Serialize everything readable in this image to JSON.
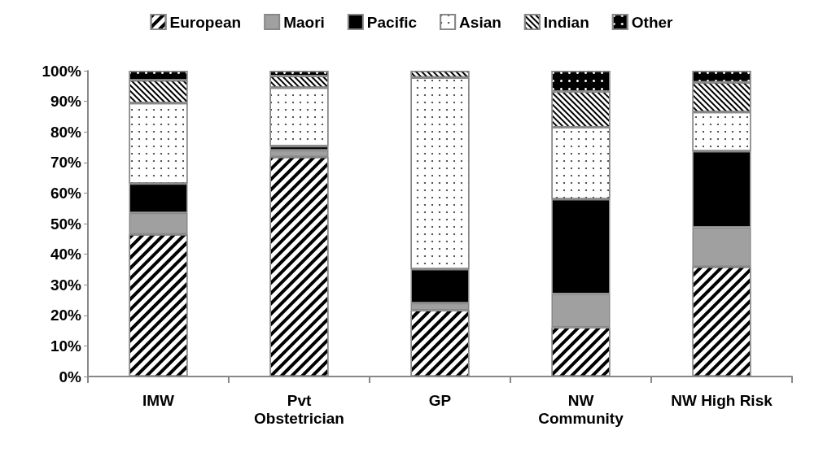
{
  "chart_data": {
    "type": "bar",
    "stacked": true,
    "categories": [
      "IMW",
      "Pvt\nObstetrician",
      "GP",
      "NW\nCommunity",
      "NW High Risk"
    ],
    "series": [
      {
        "name": "European",
        "color": "#ffffff",
        "values": [
          46.5,
          71.8,
          21.7,
          16.1,
          35.9
        ]
      },
      {
        "name": "Maori",
        "color": "#a0a0a0",
        "values": [
          7.0,
          2.2,
          2.3,
          10.9,
          12.9
        ]
      },
      {
        "name": "Pacific",
        "color": "#000000",
        "values": [
          9.6,
          1.3,
          11.1,
          31.0,
          24.9
        ]
      },
      {
        "name": "Asian",
        "color": "#ffffff",
        "values": [
          26.3,
          19.2,
          62.7,
          23.5,
          12.8
        ]
      },
      {
        "name": "Indian",
        "color": "#ffffff",
        "values": [
          7.5,
          3.8,
          2.2,
          11.7,
          9.7
        ]
      },
      {
        "name": "Other",
        "color": "#000000",
        "values": [
          3.1,
          1.7,
          null,
          6.8,
          3.8
        ]
      }
    ],
    "ylim": [
      0,
      100
    ],
    "yticks": [
      {
        "value": 0,
        "label": "0%"
      },
      {
        "value": 10,
        "label": "10%"
      },
      {
        "value": 20,
        "label": "20%"
      },
      {
        "value": 30,
        "label": "30%"
      },
      {
        "value": 40,
        "label": "40%"
      },
      {
        "value": 50,
        "label": "50%"
      },
      {
        "value": 60,
        "label": "60%"
      },
      {
        "value": 70,
        "label": "70%"
      },
      {
        "value": 80,
        "label": "80%"
      },
      {
        "value": 90,
        "label": "90%"
      },
      {
        "value": 100,
        "label": "100%"
      }
    ],
    "grid": false,
    "legend": "top"
  }
}
